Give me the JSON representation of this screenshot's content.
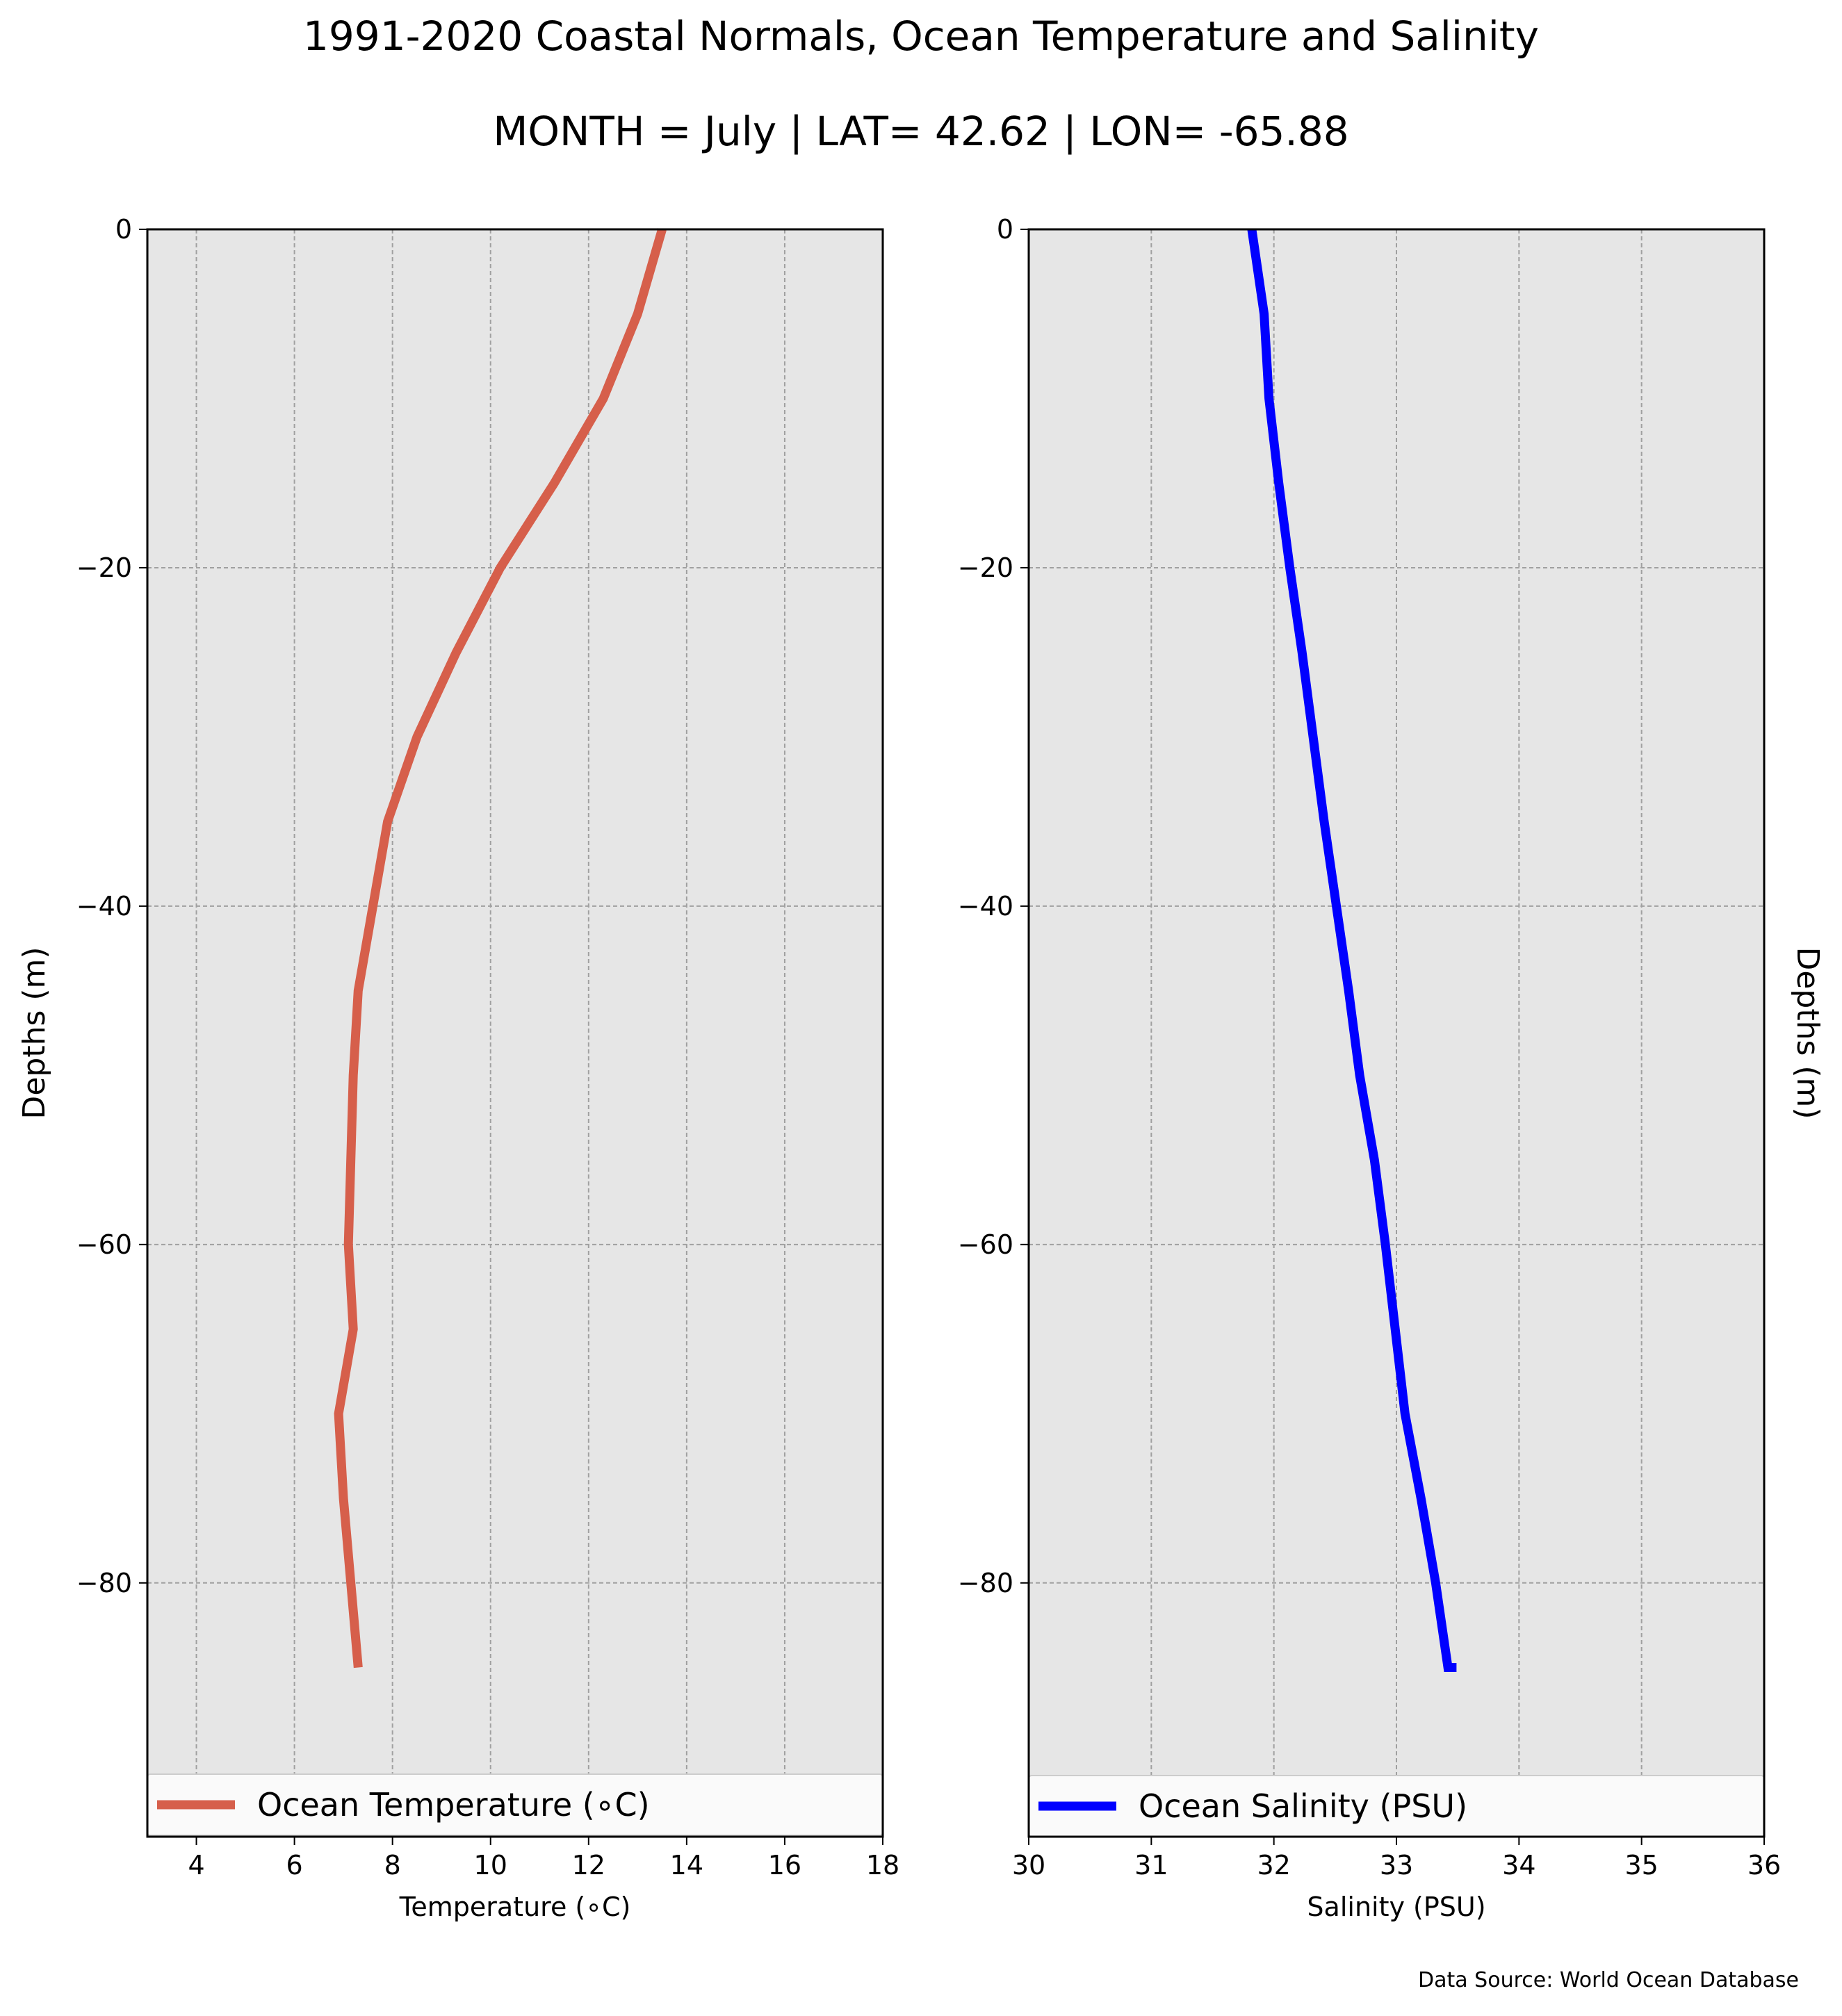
{
  "figure": {
    "title": "1991-2020 Coastal Normals, Ocean Temperature and Salinity",
    "subtitle": "MONTH = July | LAT= 42.62 | LON= -65.88",
    "source": "Data Source: World Ocean Database"
  },
  "chart_data": [
    {
      "type": "line",
      "title": "",
      "xlabel": "Temperature ($^\\circ$C)",
      "xlabel_display": "Temperature (∘C)",
      "ylabel": "Depths (m)",
      "xlim": [
        3,
        18
      ],
      "ylim": [
        -95,
        0
      ],
      "xticks": [
        4,
        6,
        8,
        10,
        12,
        14,
        16,
        18
      ],
      "yticks": [
        0,
        -20,
        -40,
        -60,
        -80
      ],
      "ytick_labels": [
        "0",
        "−20",
        "−40",
        "−60",
        "−80"
      ],
      "grid": true,
      "legend_position": "lower center",
      "series": [
        {
          "name": "Ocean Temperature (∘C)",
          "color": "#d65f4b",
          "x": [
            13.5,
            13.0,
            12.3,
            11.3,
            10.2,
            9.3,
            8.5,
            7.9,
            7.6,
            7.3,
            7.2,
            7.15,
            7.1,
            7.2,
            6.9,
            7.0,
            7.15,
            7.3
          ],
          "y": [
            0,
            -5,
            -10,
            -15,
            -20,
            -25,
            -30,
            -35,
            -40,
            -45,
            -50,
            -55,
            -60,
            -65,
            -70,
            -75,
            -80,
            -85
          ]
        }
      ]
    },
    {
      "type": "line",
      "title": "",
      "xlabel": "Salinity (PSU)",
      "ylabel": "Depths (m)",
      "xlim": [
        30,
        36
      ],
      "ylim": [
        -95,
        0
      ],
      "xticks": [
        30,
        31,
        32,
        33,
        34,
        35,
        36
      ],
      "yticks": [
        0,
        -20,
        -40,
        -60,
        -80
      ],
      "ytick_labels": [
        "0",
        "−20",
        "−40",
        "−60",
        "−80"
      ],
      "grid": true,
      "legend_position": "lower center",
      "series": [
        {
          "name": "Ocean Salinity (PSU)",
          "color": "#0000ff",
          "x": [
            31.82,
            31.92,
            31.96,
            32.04,
            32.13,
            32.23,
            32.32,
            32.41,
            32.51,
            32.61,
            32.7,
            32.82,
            32.91,
            32.99,
            33.07,
            33.2,
            33.32,
            33.42,
            33.49
          ],
          "y": [
            0,
            -5,
            -10,
            -15,
            -20,
            -25,
            -30,
            -35,
            -40,
            -45,
            -50,
            -55,
            -60,
            -65,
            -70,
            -75,
            -80,
            -85,
            -85
          ]
        }
      ]
    }
  ]
}
